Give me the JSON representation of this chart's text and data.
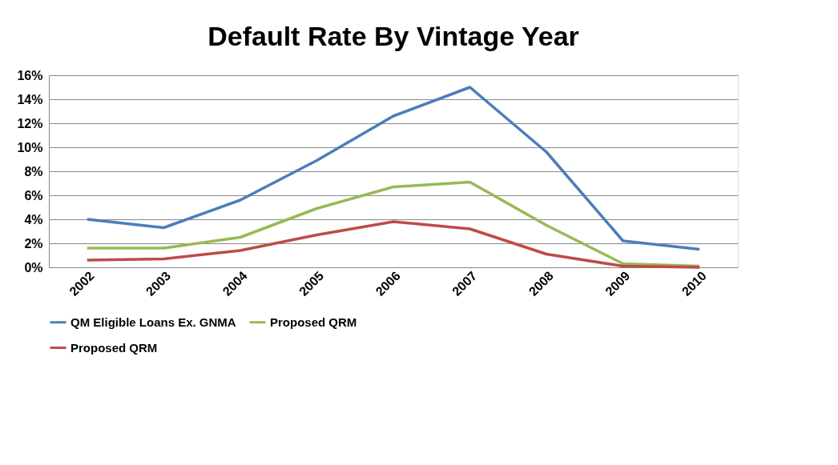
{
  "chart_data": {
    "type": "line",
    "title": "Default Rate By Vintage Year",
    "categories": [
      "2002",
      "2003",
      "2004",
      "2005",
      "2006",
      "2007",
      "2008",
      "2009",
      "2010"
    ],
    "series": [
      {
        "name": "QM Eligible Loans Ex. GNMA",
        "color": "#4a7ebb",
        "values": [
          4.0,
          3.3,
          5.6,
          8.9,
          12.6,
          15.0,
          9.6,
          2.2,
          1.5
        ]
      },
      {
        "name": "Proposed QRM",
        "color": "#98b954",
        "values": [
          1.6,
          1.6,
          2.5,
          4.9,
          6.7,
          7.1,
          3.5,
          0.3,
          0.1
        ]
      },
      {
        "name": "Proposed QRM",
        "color": "#be4b48",
        "values": [
          0.6,
          0.7,
          1.4,
          2.7,
          3.8,
          3.2,
          1.1,
          0.1,
          0.0
        ]
      }
    ],
    "ylim": [
      0,
      16
    ],
    "yticks": [
      {
        "value": 0,
        "label": "0%"
      },
      {
        "value": 2,
        "label": "2%"
      },
      {
        "value": 4,
        "label": "4%"
      },
      {
        "value": 6,
        "label": "6%"
      },
      {
        "value": 8,
        "label": "8%"
      },
      {
        "value": 10,
        "label": "10%"
      },
      {
        "value": 12,
        "label": "12%"
      },
      {
        "value": 14,
        "label": "14%"
      },
      {
        "value": 16,
        "label": "16%"
      }
    ],
    "grid": "y",
    "legend": "bottom",
    "marker": "none",
    "line_style": "solid"
  }
}
